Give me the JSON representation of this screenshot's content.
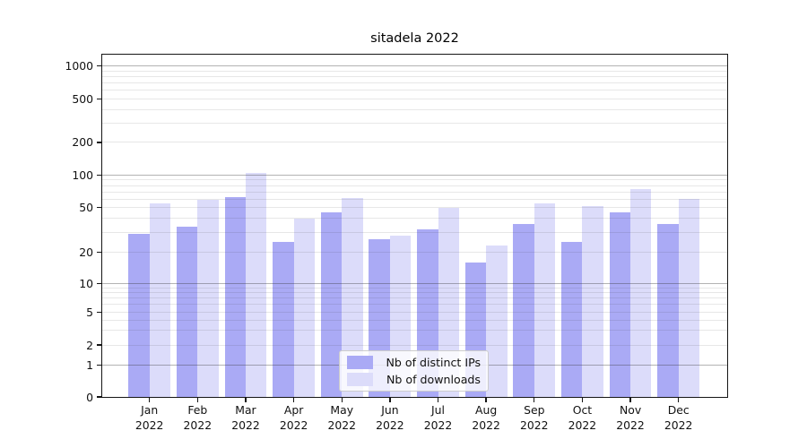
{
  "chart_data": {
    "type": "bar",
    "title": "sitadela 2022",
    "months": [
      "Jan",
      "Feb",
      "Mar",
      "Apr",
      "May",
      "Jun",
      "Jul",
      "Aug",
      "Sep",
      "Oct",
      "Nov",
      "Dec"
    ],
    "year": "2022",
    "series": [
      {
        "name": "Nb of distinct IPs",
        "color": "#aaaaf5",
        "values": [
          29,
          34,
          63,
          25,
          45,
          26,
          32,
          16,
          36,
          25,
          45,
          36
        ]
      },
      {
        "name": "Nb of downloads",
        "color": "#dcdcfa",
        "values": [
          55,
          59,
          105,
          40,
          61,
          28,
          50,
          23,
          55,
          52,
          74,
          60
        ]
      }
    ],
    "yscale": "symlog",
    "ylim": [
      0,
      1290
    ],
    "y_tick_labels": [
      "0",
      "1",
      "2",
      "5",
      "10",
      "20",
      "50",
      "100",
      "200",
      "500",
      "1000"
    ],
    "grid": {
      "major_lines": [
        1,
        10,
        100,
        1000
      ],
      "minor_subs": [
        2,
        3,
        4,
        5,
        6,
        7,
        8,
        9
      ]
    },
    "legend_position": "inside lower center"
  }
}
